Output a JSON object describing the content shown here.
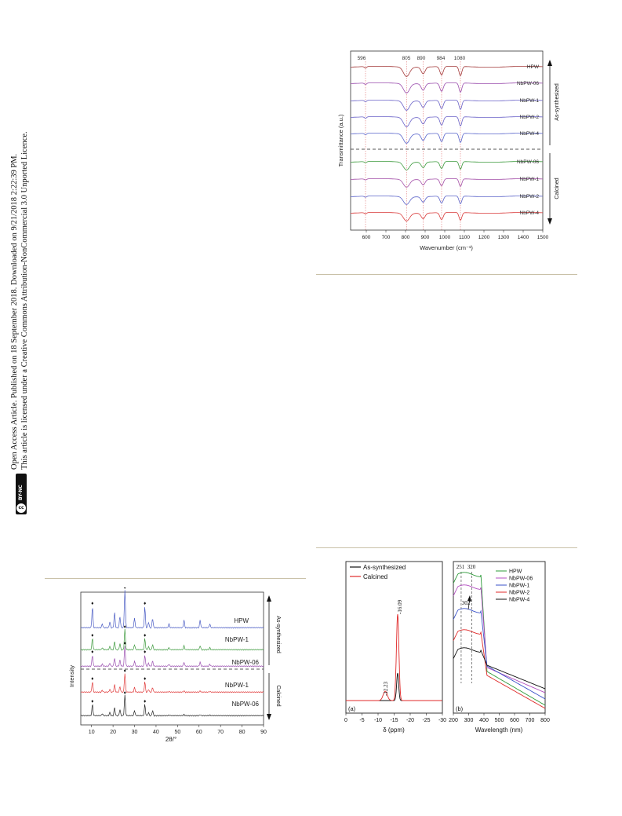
{
  "sidebar": {
    "line1": "Open Access Article. Published on 18 September 2018. Downloaded on 9/21/2018 2:22:39 PM.",
    "line2": "This article is licensed under a Creative Commons Attribution-NonCommercial 3.0 Unported Licence.",
    "badge_cc": "cc",
    "badge_text": "BY-NC"
  },
  "chart_data": [
    {
      "type": "line",
      "id": "ftir",
      "ylabel": "Transmittance (a.u.)",
      "xlabel": "Wavenumber (cm⁻¹)",
      "xlim": [
        520,
        1500
      ],
      "x_ticks": [
        "600",
        "700",
        "800",
        "900",
        "1000",
        "1100",
        "1200",
        "1300",
        "1400",
        "1500"
      ],
      "peak_labels": [
        "596",
        "805",
        "890",
        "984",
        "1080"
      ],
      "series": [
        {
          "name": "HPW",
          "group": "As-synthesized",
          "color": "#a43b3b"
        },
        {
          "name": "NbPW-06",
          "group": "As-synthesized",
          "color": "#9b4fae"
        },
        {
          "name": "NbPW-1",
          "group": "As-synthesized",
          "color": "#6a62c8"
        },
        {
          "name": "NbPW-2",
          "group": "As-synthesized",
          "color": "#6a62c8"
        },
        {
          "name": "NbPW-4",
          "group": "As-synthesized",
          "color": "#5a66cc"
        },
        {
          "name": "NbPW-06",
          "group": "Calcined",
          "color": "#3d9a3d"
        },
        {
          "name": "NbPW-1",
          "group": "Calcined",
          "color": "#a34fa8"
        },
        {
          "name": "NbPW-2",
          "group": "Calcined",
          "color": "#5b63c9"
        },
        {
          "name": "NbPW-4",
          "group": "Calcined",
          "color": "#d93a3a"
        }
      ],
      "group_labels": [
        "As-synthesized",
        "Calcined"
      ]
    },
    {
      "type": "line",
      "id": "xrd",
      "ylabel": "Intensity",
      "xlabel": "2θ/°",
      "xlim": [
        5,
        90
      ],
      "x_ticks": [
        "10",
        "20",
        "30",
        "40",
        "50",
        "60",
        "70",
        "80",
        "90"
      ],
      "series": [
        {
          "name": "HPW",
          "group": "As-synthesized",
          "color": "#4a5cc4"
        },
        {
          "name": "NbPW-1",
          "group": "As-synthesized",
          "color": "#3e9a3e"
        },
        {
          "name": "NbPW-06",
          "group": "As-synthesized",
          "color": "#9a4fb0"
        },
        {
          "name": "NbPW-1",
          "group": "Calcined",
          "color": "#e03b3b"
        },
        {
          "name": "NbPW-06",
          "group": "Calcined",
          "color": "#222222"
        }
      ],
      "group_labels": [
        "As-synthesized",
        "Calcined"
      ]
    },
    {
      "type": "line",
      "id": "nmr",
      "panel": "(a)",
      "xlabel": "δ (ppm)",
      "xlim": [
        0,
        -30
      ],
      "x_ticks": [
        "0",
        "-5",
        "-10",
        "-15",
        "-20",
        "-25",
        "-30"
      ],
      "peak_labels": [
        "-12.23",
        "-16.09"
      ],
      "series": [
        {
          "name": "As-synthesized",
          "color": "#111111"
        },
        {
          "name": "Calcined",
          "color": "#e02a2a"
        }
      ]
    },
    {
      "type": "line",
      "id": "uvvis",
      "panel": "(b)",
      "xlabel": "Wavelength (nm)",
      "xlim": [
        200,
        800
      ],
      "x_ticks": [
        "200",
        "300",
        "400",
        "500",
        "600",
        "700",
        "800"
      ],
      "peak_labels": [
        "251",
        "320",
        "302"
      ],
      "series": [
        {
          "name": "HPW",
          "color": "#2e9b3a"
        },
        {
          "name": "NbPW-06",
          "color": "#b34fc0"
        },
        {
          "name": "NbPW-1",
          "color": "#3a52c8"
        },
        {
          "name": "NbPW-2",
          "color": "#e02a2a"
        },
        {
          "name": "NbPW-4",
          "color": "#111111"
        }
      ]
    }
  ]
}
